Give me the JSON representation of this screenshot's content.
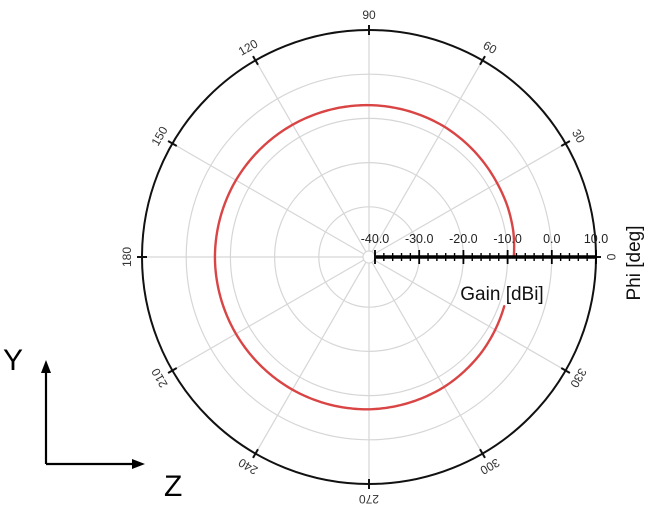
{
  "chart_data": {
    "type": "polar-line",
    "radial_axis": {
      "title": "Gain [dBi]",
      "range": [
        -40.0,
        10.0
      ],
      "ticks": [
        -40.0,
        -30.0,
        -20.0,
        -10.0,
        0.0,
        10.0
      ],
      "tick_labels": [
        "-40.0",
        "-30.0",
        "-20.0",
        "-10.0",
        "0.0",
        "10.0"
      ]
    },
    "angular_axis": {
      "title": "Phi [deg]",
      "ticks": [
        0,
        30,
        60,
        90,
        120,
        150,
        180,
        210,
        240,
        270,
        300,
        330
      ],
      "tick_labels": [
        "0",
        "30",
        "60",
        "90",
        "120",
        "150",
        "180",
        "210",
        "240",
        "270",
        "300",
        "330"
      ],
      "direction": "counterclockwise",
      "zero_at": "right"
    },
    "grid": true,
    "series": [
      {
        "color": "#d94545",
        "gap_phi_deg": [
          -20,
          0
        ],
        "points": [
          {
            "phi": 0,
            "gain": -8.6
          },
          {
            "phi": 10,
            "gain": -8.2
          },
          {
            "phi": 20,
            "gain": -8.0
          },
          {
            "phi": 30,
            "gain": -7.9
          },
          {
            "phi": 45,
            "gain": -7.6
          },
          {
            "phi": 60,
            "gain": -7.3
          },
          {
            "phi": 90,
            "gain": -7.0
          },
          {
            "phi": 120,
            "gain": -6.8
          },
          {
            "phi": 150,
            "gain": -6.6
          },
          {
            "phi": 180,
            "gain": -6.5
          },
          {
            "phi": 210,
            "gain": -6.6
          },
          {
            "phi": 240,
            "gain": -6.7
          },
          {
            "phi": 270,
            "gain": -6.9
          },
          {
            "phi": 300,
            "gain": -7.4
          },
          {
            "phi": 320,
            "gain": -8.0
          },
          {
            "phi": 335,
            "gain": -8.6
          },
          {
            "phi": 340,
            "gain": -8.8
          }
        ]
      }
    ]
  },
  "coordinate_axes": {
    "vertical_label": "Y",
    "horizontal_label": "Z"
  }
}
